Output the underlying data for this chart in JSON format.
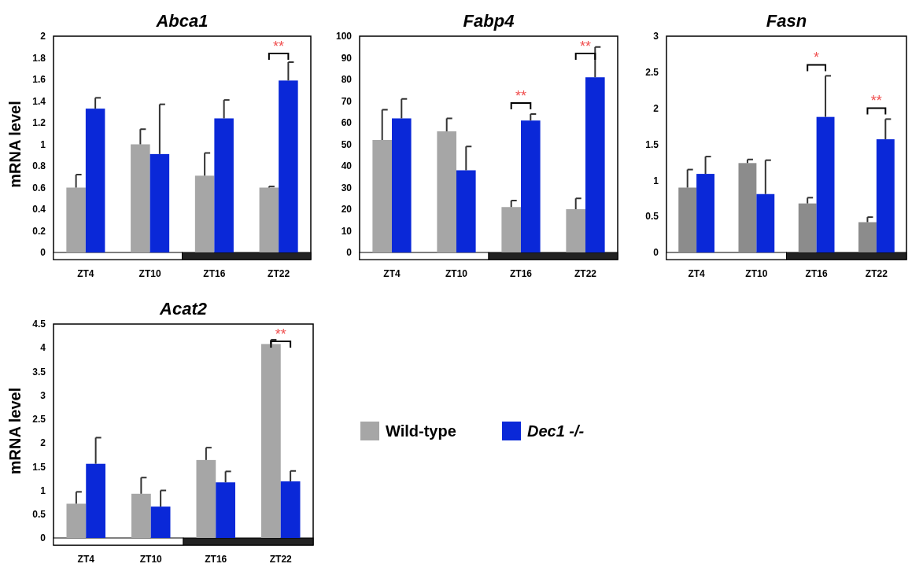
{
  "chart_data": [
    {
      "type": "bar",
      "title": "Abca1",
      "ylabel": "mRNA level",
      "categories": [
        "ZT4",
        "ZT10",
        "ZT16",
        "ZT22"
      ],
      "ylim": [
        0,
        2
      ],
      "yticks": [
        0,
        0.2,
        0.4,
        0.6,
        0.8,
        1,
        1.2,
        1.4,
        1.6,
        1.8,
        2
      ],
      "legend": false,
      "series": [
        {
          "color": "#a6a6a6",
          "values": [
            0.6,
            1.0,
            0.71,
            0.6
          ],
          "errors": [
            [
              0.6,
              0.72
            ],
            [
              1.0,
              1.14
            ],
            [
              0.71,
              0.92
            ],
            [
              0.6,
              0.61
            ]
          ]
        },
        {
          "color": "#0a28d8",
          "values": [
            1.33,
            0.91,
            1.24,
            1.59
          ],
          "errors": [
            [
              1.33,
              1.43
            ],
            [
              0.91,
              1.37
            ],
            [
              1.24,
              1.41
            ],
            [
              1.59,
              1.76
            ]
          ]
        }
      ],
      "annotations": [
        "**"
      ]
    },
    {
      "type": "bar",
      "title": "Fabp4",
      "categories": [
        "ZT4",
        "ZT10",
        "ZT16",
        "ZT22"
      ],
      "ylim": [
        0,
        100
      ],
      "yticks": [
        0,
        10,
        20,
        30,
        40,
        50,
        60,
        70,
        80,
        90,
        100
      ],
      "legend": false,
      "series": [
        {
          "color": "#a6a6a6",
          "values": [
            52,
            56,
            21,
            20
          ],
          "errors": [
            [
              52,
              66
            ],
            [
              56,
              62
            ],
            [
              21,
              24
            ],
            [
              20,
              25
            ]
          ]
        },
        {
          "color": "#0a28d8",
          "values": [
            62,
            38,
            61,
            81
          ],
          "errors": [
            [
              62,
              71
            ],
            [
              38,
              49
            ],
            [
              61,
              64
            ],
            [
              81,
              95
            ]
          ]
        }
      ],
      "annotations": [
        "**",
        "**"
      ]
    },
    {
      "type": "bar",
      "title": "Fasn",
      "categories": [
        "ZT4",
        "ZT10",
        "ZT16",
        "ZT22"
      ],
      "ylim": [
        0,
        3
      ],
      "yticks": [
        0,
        0.5,
        1,
        1.5,
        2,
        2.5,
        3
      ],
      "legend": false,
      "series": [
        {
          "color": "#8c8c8c",
          "values": [
            0.9,
            1.24,
            0.68,
            0.42
          ],
          "errors": [
            [
              0.9,
              1.15
            ],
            [
              1.24,
              1.29
            ],
            [
              0.68,
              0.76
            ],
            [
              0.42,
              0.49
            ]
          ]
        },
        {
          "color": "#0a28d8",
          "values": [
            1.09,
            0.81,
            1.88,
            1.57
          ],
          "errors": [
            [
              1.09,
              1.33
            ],
            [
              0.81,
              1.28
            ],
            [
              1.88,
              2.45
            ],
            [
              1.57,
              1.85
            ]
          ]
        }
      ],
      "annotations": [
        "*",
        "**"
      ]
    },
    {
      "type": "bar",
      "title": "Acat2",
      "ylabel": "mRNA level",
      "categories": [
        "ZT4",
        "ZT10",
        "ZT16",
        "ZT22"
      ],
      "ylim": [
        0,
        4.5
      ],
      "yticks": [
        0,
        0.5,
        1,
        1.5,
        2,
        2.5,
        3,
        3.5,
        4,
        4.5
      ],
      "legend": "right",
      "series": [
        {
          "name": "Wild-type",
          "color": "#a6a6a6",
          "values": [
            0.72,
            0.93,
            1.64,
            4.08
          ],
          "errors": [
            [
              0.72,
              0.97
            ],
            [
              0.93,
              1.27
            ],
            [
              1.64,
              1.9
            ],
            [
              4.08,
              4.17
            ]
          ]
        },
        {
          "name": "Dec1 -/-",
          "color": "#0a28d8",
          "values": [
            1.56,
            0.66,
            1.17,
            1.19
          ],
          "errors": [
            [
              1.56,
              2.11
            ],
            [
              0.66,
              1.0
            ],
            [
              1.17,
              1.4
            ],
            [
              1.19,
              1.41
            ]
          ]
        }
      ],
      "annotations": [
        "**"
      ]
    }
  ]
}
